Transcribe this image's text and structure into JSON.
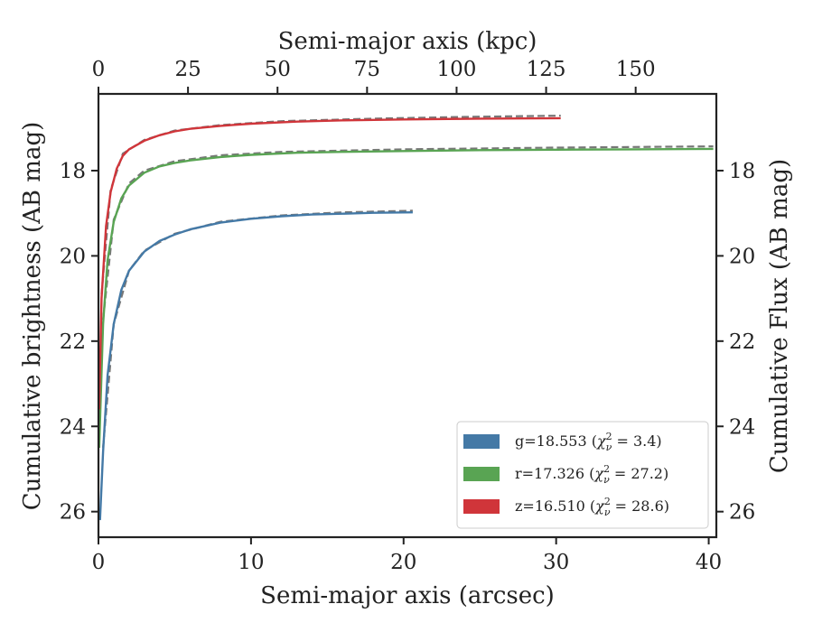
{
  "chart_data": {
    "type": "line",
    "title": "",
    "xlabel": "Semi-major axis (arcsec)",
    "xlabel_top": "Semi-major axis (kpc)",
    "ylabel": "Cumulative brightness (AB mag)",
    "ylabel_right": "Cumulative Flux (AB mag)",
    "xlim": [
      0,
      40.5
    ],
    "ylim": [
      26.6,
      16.2
    ],
    "y_inverted": true,
    "x_ticks": [
      "0",
      "10",
      "20",
      "30",
      "40"
    ],
    "x_tick_values": [
      0,
      10,
      20,
      30,
      40
    ],
    "x_top_ticks": [
      "0",
      "25",
      "50",
      "75",
      "100",
      "125",
      "150"
    ],
    "x_top_tick_values": [
      0,
      25,
      50,
      75,
      100,
      125,
      150
    ],
    "kpc_per_arcsec": 4.26,
    "y_ticks": [
      "18",
      "20",
      "22",
      "24",
      "26"
    ],
    "y_tick_values": [
      18,
      20,
      22,
      24,
      26
    ],
    "grid": false,
    "legend_position": "lower-right",
    "series": [
      {
        "band": "g",
        "legend_prefix": "g=18.553 (",
        "legend_chi": "χ",
        "legend_sub": "ν",
        "legend_sup": "2",
        "legend_suffix": " = 3.4)",
        "color": "#4479a6",
        "x": [
          0.1,
          0.3,
          0.6,
          1,
          1.5,
          2,
          3,
          4,
          5,
          6,
          8,
          10,
          12,
          14,
          16,
          18,
          20.6
        ],
        "y": [
          26.2,
          24.6,
          22.8,
          21.6,
          20.8,
          20.35,
          19.9,
          19.65,
          19.5,
          19.38,
          19.22,
          19.13,
          19.07,
          19.03,
          19.01,
          18.99,
          18.98
        ],
        "model_x": [
          0.3,
          1,
          2,
          3,
          5,
          8,
          12,
          16,
          20.6
        ],
        "model_y": [
          24.5,
          21.6,
          20.35,
          19.88,
          19.48,
          19.2,
          19.05,
          18.98,
          18.94
        ]
      },
      {
        "band": "r",
        "legend_prefix": "r=17.326 (",
        "legend_chi": "χ",
        "legend_sub": "ν",
        "legend_sup": "2",
        "legend_suffix": " = 27.2)",
        "color": "#59a453",
        "x": [
          0.05,
          0.3,
          0.6,
          1,
          1.5,
          2,
          3,
          4,
          5,
          6,
          8,
          10,
          13,
          16,
          20,
          25,
          30,
          35,
          40.3
        ],
        "y": [
          24.5,
          21.6,
          20.1,
          19.2,
          18.65,
          18.35,
          18.05,
          17.9,
          17.82,
          17.76,
          17.68,
          17.63,
          17.58,
          17.56,
          17.54,
          17.52,
          17.51,
          17.5,
          17.49
        ],
        "model_x": [
          0.3,
          1,
          2,
          3,
          5,
          8,
          12,
          20,
          30,
          40.3
        ],
        "model_y": [
          21.5,
          19.15,
          18.3,
          18.0,
          17.78,
          17.64,
          17.56,
          17.5,
          17.46,
          17.43
        ]
      },
      {
        "band": "z",
        "legend_prefix": "z=16.510 (",
        "legend_chi": "χ",
        "legend_sub": "ν",
        "legend_sup": "2",
        "legend_suffix": " = 28.6)",
        "color": "#d0353a",
        "x": [
          0.05,
          0.2,
          0.5,
          0.8,
          1.2,
          1.6,
          2,
          3,
          4,
          5,
          6,
          8,
          10,
          13,
          16,
          20,
          25,
          30.3
        ],
        "y": [
          23.6,
          21.0,
          19.3,
          18.5,
          17.95,
          17.65,
          17.5,
          17.3,
          17.17,
          17.08,
          17.02,
          16.95,
          16.9,
          16.85,
          16.82,
          16.8,
          16.78,
          16.77
        ],
        "model_x": [
          0.2,
          0.8,
          1.6,
          3,
          5,
          8,
          12,
          18,
          24,
          30.3
        ],
        "model_y": [
          20.9,
          18.45,
          17.6,
          17.28,
          17.06,
          16.93,
          16.84,
          16.78,
          16.74,
          16.71
        ]
      }
    ]
  }
}
